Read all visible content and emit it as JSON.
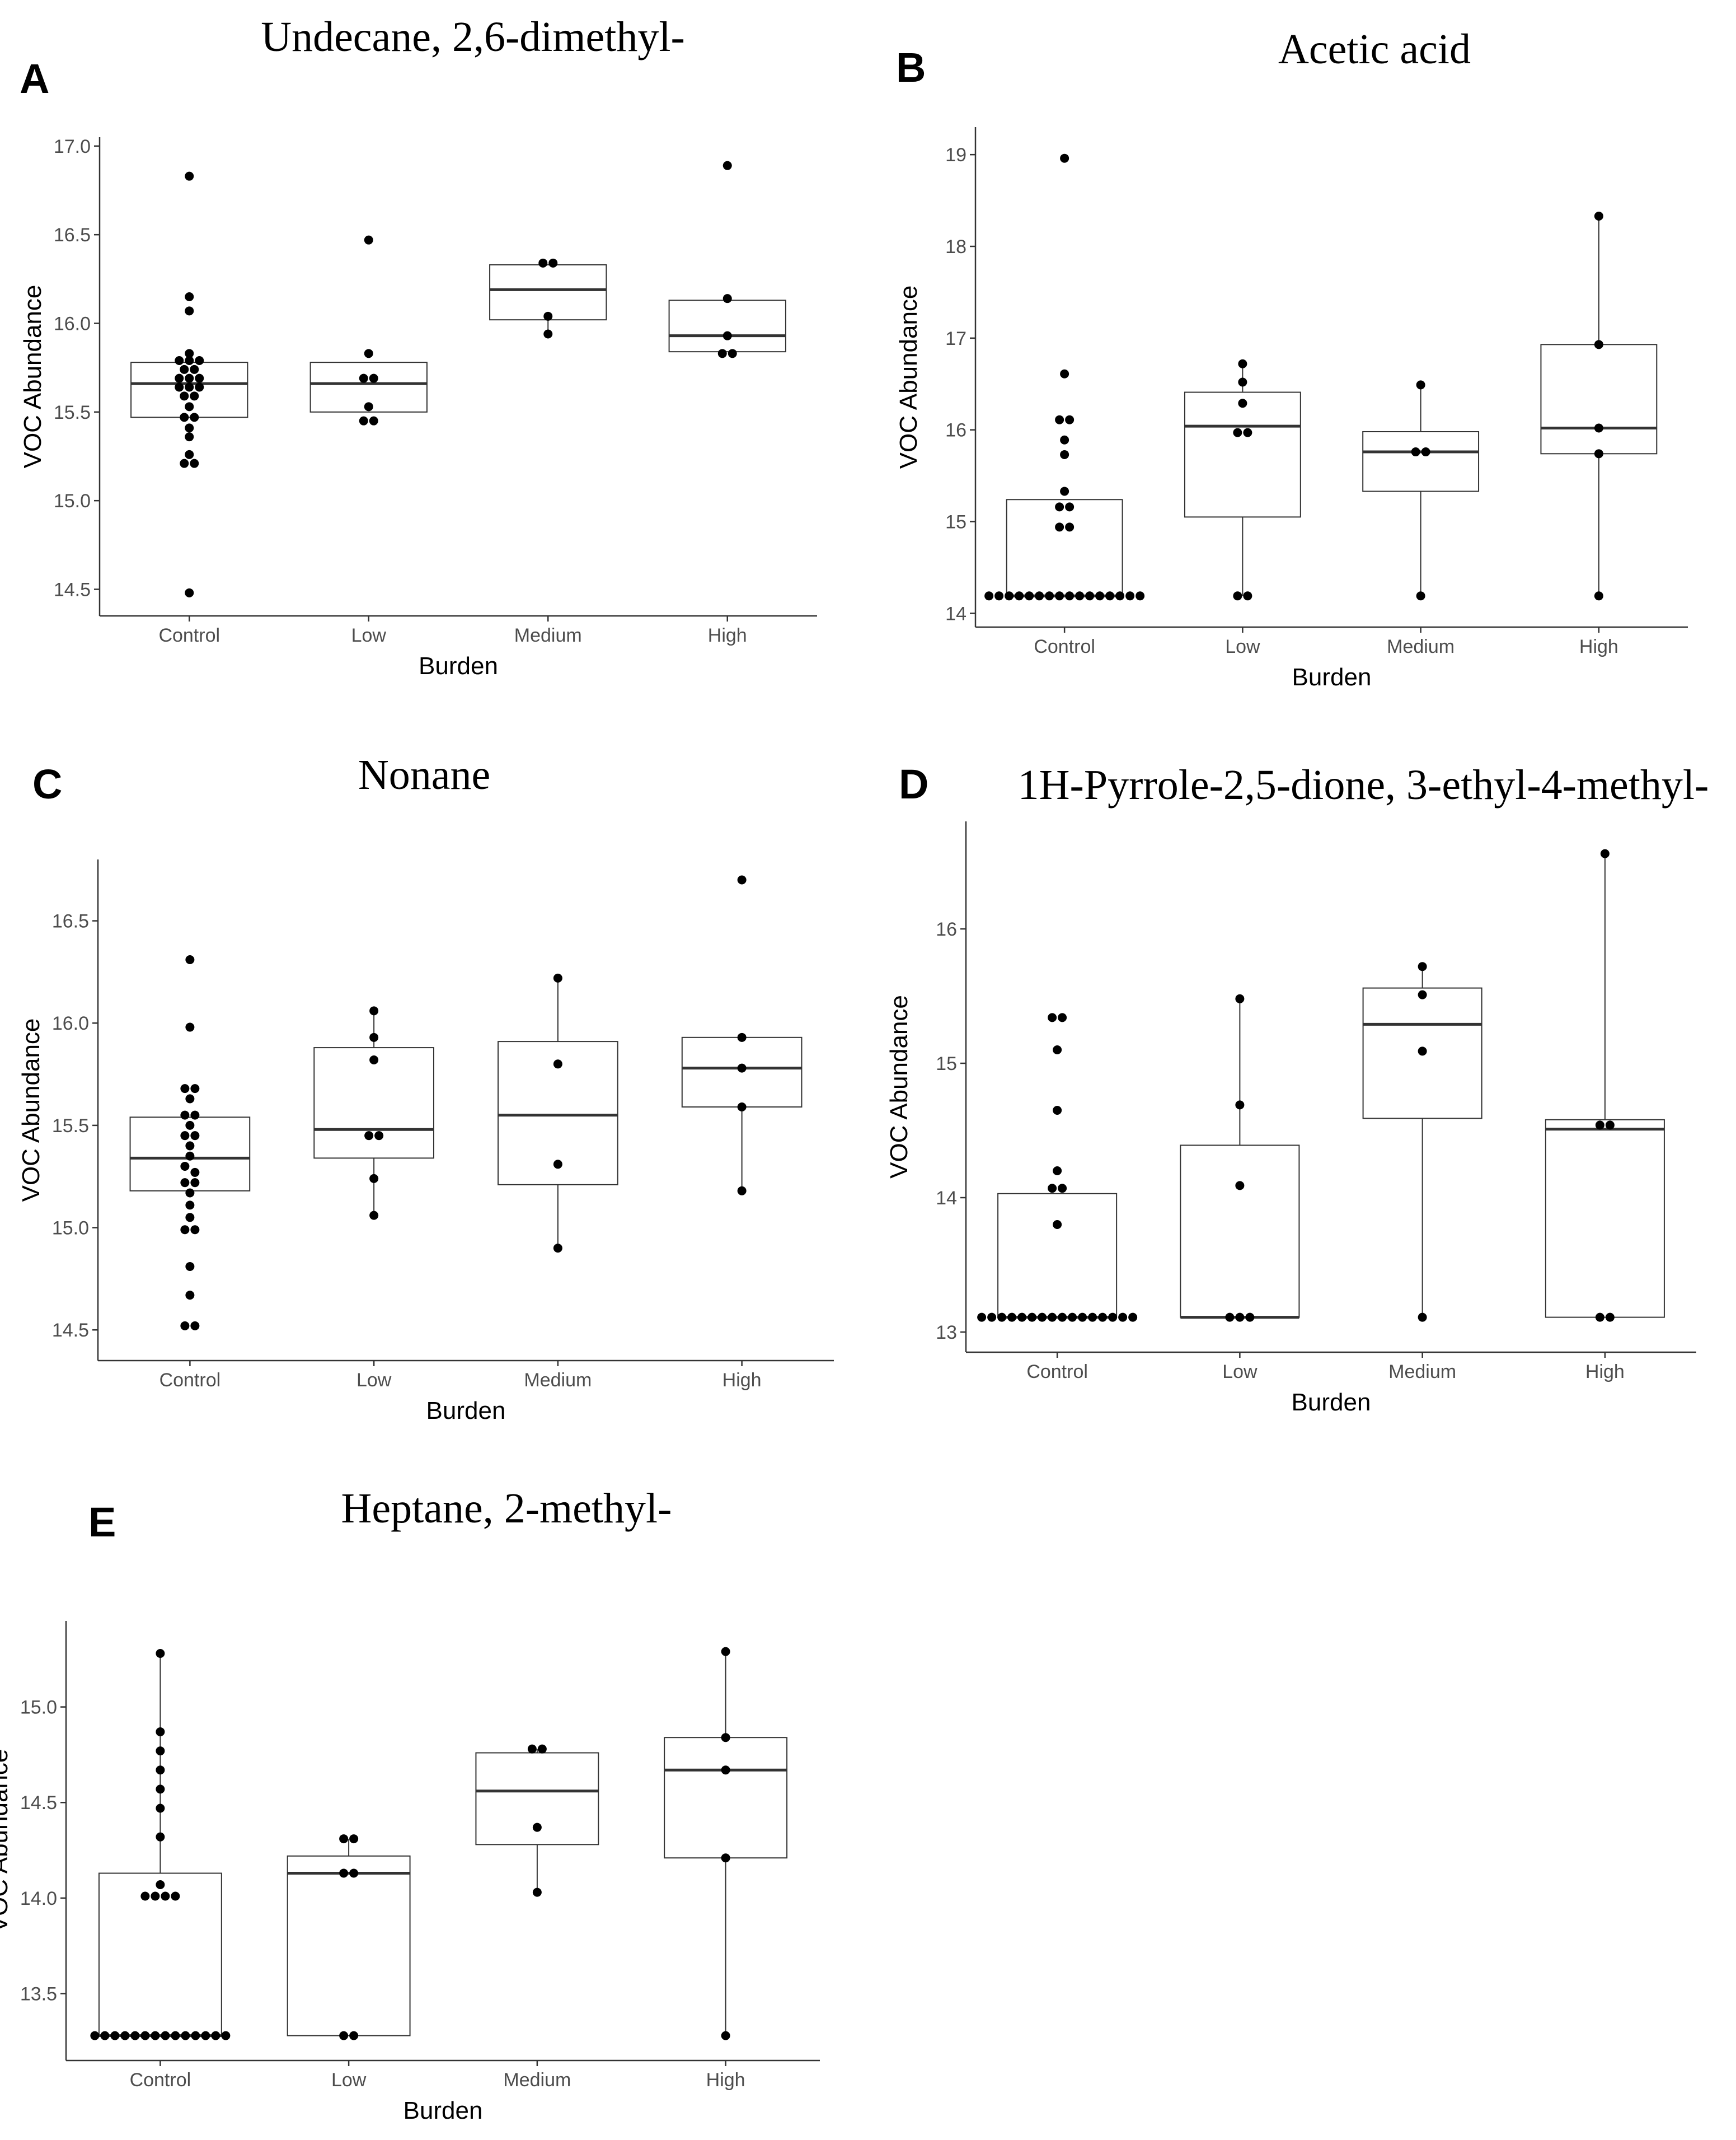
{
  "chart_data": [
    {
      "type": "box",
      "panel": "A",
      "title": "Undecane, 2,6-dimethyl-",
      "xlabel": "Burden",
      "ylabel": "VOC Abundance",
      "categories": [
        "Control",
        "Low",
        "Medium",
        "High"
      ],
      "yticks": [
        "14.5",
        "15.0",
        "15.5",
        "16.0",
        "16.5",
        "17.0"
      ],
      "ylim": [
        14.35,
        17.05
      ],
      "grid": false,
      "boxes": [
        {
          "q1": 15.47,
          "median": 15.66,
          "q3": 15.78,
          "whisker_low": 15.47,
          "whisker_high": 15.78
        },
        {
          "q1": 15.5,
          "median": 15.66,
          "q3": 15.78,
          "whisker_low": 15.5,
          "whisker_high": 15.78
        },
        {
          "q1": 16.02,
          "median": 16.19,
          "q3": 16.33,
          "whisker_low": 15.94,
          "whisker_high": 16.33
        },
        {
          "q1": 15.84,
          "median": 15.93,
          "q3": 16.13,
          "whisker_low": 15.84,
          "whisker_high": 16.13
        }
      ],
      "points": [
        [
          16.83,
          16.15,
          16.07,
          15.83,
          15.79,
          15.79,
          15.79,
          15.74,
          15.74,
          15.69,
          15.69,
          15.69,
          15.64,
          15.64,
          15.64,
          15.59,
          15.59,
          15.53,
          15.47,
          15.47,
          15.41,
          15.36,
          15.26,
          15.21,
          15.21,
          14.48
        ],
        [
          16.47,
          15.83,
          15.69,
          15.69,
          15.53,
          15.45,
          15.45
        ],
        [
          16.34,
          16.34,
          16.04,
          15.94
        ],
        [
          16.89,
          16.14,
          15.93,
          15.83,
          15.83
        ]
      ]
    },
    {
      "type": "box",
      "panel": "B",
      "title": "Acetic acid",
      "xlabel": "Burden",
      "ylabel": "VOC Abundance",
      "categories": [
        "Control",
        "Low",
        "Medium",
        "High"
      ],
      "yticks": [
        "14",
        "15",
        "16",
        "17",
        "18",
        "19"
      ],
      "ylim": [
        13.85,
        19.3
      ],
      "grid": false,
      "boxes": [
        {
          "q1": 14.19,
          "median": 14.19,
          "q3": 15.24,
          "whisker_low": 14.19,
          "whisker_high": 15.24
        },
        {
          "q1": 15.05,
          "median": 16.04,
          "q3": 16.41,
          "whisker_low": 14.19,
          "whisker_high": 16.72
        },
        {
          "q1": 15.33,
          "median": 15.76,
          "q3": 15.98,
          "whisker_low": 14.19,
          "whisker_high": 16.49
        },
        {
          "q1": 15.74,
          "median": 16.02,
          "q3": 16.93,
          "whisker_low": 14.19,
          "whisker_high": 18.33
        }
      ],
      "points": [
        [
          18.96,
          16.61,
          16.11,
          16.11,
          15.89,
          15.73,
          15.33,
          15.16,
          15.16,
          14.94,
          14.94,
          14.19,
          14.19,
          14.19,
          14.19,
          14.19,
          14.19,
          14.19,
          14.19,
          14.19,
          14.19,
          14.19,
          14.19,
          14.19,
          14.19,
          14.19,
          14.19
        ],
        [
          16.72,
          16.52,
          16.29,
          15.97,
          15.97,
          14.19,
          14.19
        ],
        [
          16.49,
          15.76,
          15.76,
          14.19
        ],
        [
          18.33,
          16.93,
          16.02,
          15.74,
          14.19
        ]
      ]
    },
    {
      "type": "box",
      "panel": "C",
      "title": "Nonane",
      "xlabel": "Burden",
      "ylabel": "VOC Abundance",
      "categories": [
        "Control",
        "Low",
        "Medium",
        "High"
      ],
      "yticks": [
        "14.5",
        "15.0",
        "15.5",
        "16.0",
        "16.5"
      ],
      "ylim": [
        14.35,
        16.8
      ],
      "grid": false,
      "boxes": [
        {
          "q1": 15.18,
          "median": 15.34,
          "q3": 15.54,
          "whisker_low": 15.18,
          "whisker_high": 15.54
        },
        {
          "q1": 15.34,
          "median": 15.48,
          "q3": 15.88,
          "whisker_low": 15.06,
          "whisker_high": 16.06
        },
        {
          "q1": 15.21,
          "median": 15.55,
          "q3": 15.91,
          "whisker_low": 14.9,
          "whisker_high": 16.22
        },
        {
          "q1": 15.59,
          "median": 15.78,
          "q3": 15.93,
          "whisker_low": 15.18,
          "whisker_high": 15.93
        }
      ],
      "points": [
        [
          16.31,
          15.98,
          15.68,
          15.68,
          15.63,
          15.55,
          15.55,
          15.5,
          15.45,
          15.45,
          15.4,
          15.35,
          15.3,
          15.27,
          15.22,
          15.22,
          15.17,
          15.11,
          15.05,
          14.99,
          14.99,
          14.81,
          14.67,
          14.52,
          14.52
        ],
        [
          16.06,
          15.93,
          15.82,
          15.45,
          15.45,
          15.24,
          15.06
        ],
        [
          16.22,
          15.8,
          15.31,
          14.9
        ],
        [
          16.7,
          15.93,
          15.78,
          15.59,
          15.18
        ]
      ]
    },
    {
      "type": "box",
      "panel": "D",
      "title": "1H-Pyrrole-2,5-dione, 3-ethyl-4-methyl-",
      "xlabel": "Burden",
      "ylabel": "VOC Abundance",
      "categories": [
        "Control",
        "Low",
        "Medium",
        "High"
      ],
      "yticks": [
        "13",
        "14",
        "15",
        "16"
      ],
      "ylim": [
        12.85,
        16.8
      ],
      "grid": false,
      "boxes": [
        {
          "q1": 13.11,
          "median": 13.11,
          "q3": 14.03,
          "whisker_low": 13.11,
          "whisker_high": 14.03
        },
        {
          "q1": 13.11,
          "median": 13.11,
          "q3": 14.39,
          "whisker_low": 13.11,
          "whisker_high": 15.48
        },
        {
          "q1": 14.59,
          "median": 15.29,
          "q3": 15.56,
          "whisker_low": 13.11,
          "whisker_high": 15.72
        },
        {
          "q1": 13.11,
          "median": 14.51,
          "q3": 14.58,
          "whisker_low": 13.11,
          "whisker_high": 16.56
        }
      ],
      "points": [
        [
          15.34,
          15.34,
          15.1,
          14.65,
          14.2,
          14.07,
          14.07,
          13.8,
          13.11,
          13.11,
          13.11,
          13.11,
          13.11,
          13.11,
          13.11,
          13.11,
          13.11,
          13.11,
          13.11,
          13.11,
          13.11,
          13.11,
          13.11,
          13.11
        ],
        [
          15.48,
          14.69,
          14.09,
          13.11,
          13.11,
          13.11
        ],
        [
          15.72,
          15.51,
          15.09,
          13.11
        ],
        [
          16.56,
          14.54,
          14.54,
          13.11,
          13.11
        ]
      ]
    },
    {
      "type": "box",
      "panel": "E",
      "title": "Heptane, 2-methyl-",
      "xlabel": "Burden",
      "ylabel": "VOC Abundance",
      "categories": [
        "Control",
        "Low",
        "Medium",
        "High"
      ],
      "yticks": [
        "13.5",
        "14.0",
        "14.5",
        "15.0"
      ],
      "ylim": [
        13.15,
        15.45
      ],
      "grid": false,
      "boxes": [
        {
          "q1": 13.28,
          "median": 13.28,
          "q3": 14.13,
          "whisker_low": 13.28,
          "whisker_high": 15.28
        },
        {
          "q1": 13.28,
          "median": 14.13,
          "q3": 14.22,
          "whisker_low": 13.28,
          "whisker_high": 14.31
        },
        {
          "q1": 14.28,
          "median": 14.56,
          "q3": 14.76,
          "whisker_low": 14.03,
          "whisker_high": 14.78
        },
        {
          "q1": 14.21,
          "median": 14.67,
          "q3": 14.84,
          "whisker_low": 13.28,
          "whisker_high": 15.29
        }
      ],
      "points": [
        [
          15.28,
          14.87,
          14.77,
          14.67,
          14.57,
          14.47,
          14.32,
          14.07,
          14.01,
          14.01,
          14.01,
          14.01,
          13.28,
          13.28,
          13.28,
          13.28,
          13.28,
          13.28,
          13.28,
          13.28,
          13.28,
          13.28,
          13.28,
          13.28,
          13.28,
          13.28
        ],
        [
          14.31,
          14.31,
          14.13,
          14.13,
          13.28,
          13.28
        ],
        [
          14.78,
          14.78,
          14.37,
          14.03
        ],
        [
          15.29,
          14.84,
          14.67,
          14.21,
          13.28
        ]
      ]
    }
  ]
}
